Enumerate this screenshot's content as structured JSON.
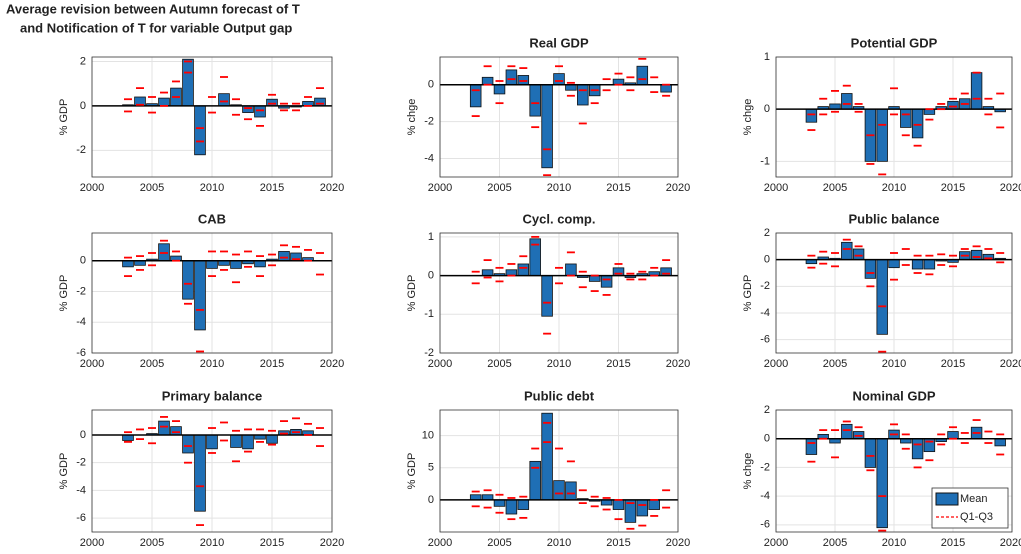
{
  "chart_data": [
    {
      "type": "bar",
      "title": [
        "Average revision between Autumn forecast of T",
        "and Notification of T for variable Output gap"
      ],
      "ylabel": "% GDP",
      "x": [
        2003,
        2004,
        2005,
        2006,
        2007,
        2008,
        2009,
        2010,
        2011,
        2012,
        2013,
        2014,
        2015,
        2016,
        2017,
        2018,
        2019
      ],
      "xlim": [
        2000,
        2020
      ],
      "xticks": [
        2000,
        2005,
        2010,
        2015,
        2020
      ],
      "ylim": [
        -3.2,
        2.2
      ],
      "yticks": [
        -2,
        0,
        2
      ],
      "grid": true,
      "series": [
        {
          "color": "#1f6fb5",
          "values": [
            0.05,
            0.4,
            0.1,
            0.35,
            0.8,
            2.1,
            -2.2,
            0.0,
            0.55,
            0.05,
            -0.3,
            -0.5,
            0.3,
            -0.1,
            -0.05,
            0.2,
            0.35
          ]
        },
        {
          "color": "#ff0000",
          "q1": [
            -0.25,
            0.05,
            -0.3,
            0.0,
            0.4,
            1.5,
            -1.6,
            -0.3,
            0.2,
            -0.4,
            -0.6,
            -0.9,
            0.1,
            -0.2,
            -0.2,
            0.0,
            0.1
          ],
          "q3": [
            0.3,
            0.8,
            0.4,
            0.6,
            1.1,
            2.0,
            -1.0,
            0.4,
            1.3,
            0.3,
            -0.1,
            -0.2,
            0.5,
            0.1,
            0.1,
            0.4,
            0.8
          ]
        }
      ]
    },
    {
      "type": "bar",
      "title": "Real GDP",
      "ylabel": "% chge",
      "x": [
        2003,
        2004,
        2005,
        2006,
        2007,
        2008,
        2009,
        2010,
        2011,
        2012,
        2013,
        2014,
        2015,
        2016,
        2017,
        2018,
        2019
      ],
      "xlim": [
        2000,
        2020
      ],
      "xticks": [
        2000,
        2005,
        2010,
        2015,
        2020
      ],
      "ylim": [
        -5,
        1.5
      ],
      "yticks": [
        -4,
        -2,
        0
      ],
      "grid": true,
      "series": [
        {
          "color": "#1f6fb5",
          "values": [
            -1.2,
            0.4,
            -0.5,
            0.8,
            0.5,
            -1.7,
            -4.5,
            0.6,
            -0.3,
            -1.1,
            -0.6,
            0.0,
            0.3,
            0.1,
            1.0,
            0.0,
            -0.4
          ]
        },
        {
          "color": "#ff0000",
          "q1": [
            -1.7,
            0.0,
            -1.0,
            0.3,
            0.2,
            -2.3,
            -4.9,
            0.2,
            -0.6,
            -2.1,
            -1.0,
            -0.3,
            0.0,
            -0.3,
            0.3,
            -0.4,
            -0.6
          ],
          "q3": [
            -0.3,
            1.0,
            0.2,
            1.0,
            0.9,
            -1.0,
            -3.5,
            1.0,
            0.1,
            -0.3,
            -0.3,
            0.3,
            0.6,
            0.4,
            1.4,
            0.4,
            0.0
          ]
        }
      ]
    },
    {
      "type": "bar",
      "title": "Potential GDP",
      "ylabel": "% chge",
      "x": [
        2003,
        2004,
        2005,
        2006,
        2007,
        2008,
        2009,
        2010,
        2011,
        2012,
        2013,
        2014,
        2015,
        2016,
        2017,
        2018,
        2019
      ],
      "xlim": [
        2000,
        2020
      ],
      "xticks": [
        2000,
        2005,
        2010,
        2015,
        2020
      ],
      "ylim": [
        -1.3,
        1
      ],
      "yticks": [
        -1,
        0,
        1
      ],
      "grid": true,
      "series": [
        {
          "color": "#1f6fb5",
          "values": [
            -0.25,
            0.05,
            0.1,
            0.3,
            0.05,
            -1.0,
            -1.0,
            0.05,
            -0.35,
            -0.55,
            -0.1,
            0.05,
            0.15,
            0.2,
            0.7,
            0.05,
            -0.05
          ]
        },
        {
          "color": "#ff0000",
          "q1": [
            -0.4,
            -0.1,
            -0.05,
            0.1,
            -0.05,
            -1.05,
            -1.25,
            -0.1,
            -0.5,
            -0.7,
            -0.2,
            0.0,
            0.05,
            0.1,
            0.2,
            -0.1,
            -0.35
          ],
          "q3": [
            -0.1,
            0.2,
            0.35,
            0.45,
            0.1,
            -0.5,
            -0.3,
            0.4,
            -0.1,
            -0.3,
            0.0,
            0.1,
            0.2,
            0.3,
            0.7,
            0.2,
            0.3
          ]
        }
      ]
    },
    {
      "type": "bar",
      "title": "CAB",
      "ylabel": "% GDP",
      "x": [
        2003,
        2004,
        2005,
        2006,
        2007,
        2008,
        2009,
        2010,
        2011,
        2012,
        2013,
        2014,
        2015,
        2016,
        2017,
        2018,
        2019
      ],
      "xlim": [
        2000,
        2020
      ],
      "xticks": [
        2000,
        2005,
        2010,
        2015,
        2020
      ],
      "ylim": [
        -6,
        1.8
      ],
      "yticks": [
        -6,
        -4,
        -2,
        0
      ],
      "grid": true,
      "series": [
        {
          "color": "#1f6fb5",
          "values": [
            -0.4,
            -0.3,
            0.1,
            1.1,
            0.3,
            -2.5,
            -4.5,
            -0.5,
            -0.3,
            -0.5,
            -0.2,
            -0.4,
            0.1,
            0.6,
            0.5,
            0.2,
            0.0
          ]
        },
        {
          "color": "#ff0000",
          "q1": [
            -1.0,
            -0.6,
            -0.3,
            0.5,
            0.0,
            -2.8,
            -5.9,
            -1.0,
            -0.6,
            -1.4,
            -0.4,
            -1.0,
            -0.3,
            0.2,
            0.1,
            0.0,
            -0.9
          ],
          "q3": [
            0.2,
            0.3,
            0.5,
            1.3,
            0.6,
            -1.5,
            -3.2,
            0.6,
            0.6,
            0.4,
            0.6,
            0.3,
            0.4,
            1.0,
            0.9,
            0.7,
            0.5
          ]
        }
      ]
    },
    {
      "type": "bar",
      "title": "Cycl. comp.",
      "ylabel": "% GDP",
      "x": [
        2003,
        2004,
        2005,
        2006,
        2007,
        2008,
        2009,
        2010,
        2011,
        2012,
        2013,
        2014,
        2015,
        2016,
        2017,
        2018,
        2019
      ],
      "xlim": [
        2000,
        2020
      ],
      "xticks": [
        2000,
        2005,
        2010,
        2015,
        2020
      ],
      "ylim": [
        -2,
        1.1
      ],
      "yticks": [
        -2,
        -1,
        0,
        1
      ],
      "grid": true,
      "series": [
        {
          "color": "#1f6fb5",
          "values": [
            0.0,
            0.15,
            0.05,
            0.15,
            0.3,
            0.95,
            -1.05,
            0.0,
            0.3,
            -0.05,
            -0.15,
            -0.3,
            0.2,
            -0.05,
            0.05,
            0.1,
            0.2
          ]
        },
        {
          "color": "#ff0000",
          "q1": [
            -0.2,
            -0.05,
            -0.15,
            0.0,
            0.2,
            0.8,
            -1.5,
            -0.2,
            0.0,
            -0.3,
            -0.4,
            -0.5,
            0.05,
            -0.1,
            -0.1,
            0.0,
            0.05
          ],
          "q3": [
            0.1,
            0.4,
            0.2,
            0.3,
            0.5,
            1.0,
            -0.7,
            0.2,
            0.6,
            0.1,
            0.0,
            -0.1,
            0.3,
            0.05,
            0.1,
            0.2,
            0.4
          ]
        }
      ]
    },
    {
      "type": "bar",
      "title": "Public balance",
      "ylabel": "% GDP",
      "x": [
        2003,
        2004,
        2005,
        2006,
        2007,
        2008,
        2009,
        2010,
        2011,
        2012,
        2013,
        2014,
        2015,
        2016,
        2017,
        2018,
        2019
      ],
      "xlim": [
        2000,
        2020
      ],
      "xticks": [
        2000,
        2005,
        2010,
        2015,
        2020
      ],
      "ylim": [
        -7,
        2
      ],
      "yticks": [
        -6,
        -4,
        -2,
        0,
        2
      ],
      "grid": true,
      "series": [
        {
          "color": "#1f6fb5",
          "values": [
            -0.3,
            0.2,
            0.1,
            1.3,
            0.8,
            -1.4,
            -5.6,
            -0.6,
            0.0,
            -0.7,
            -0.7,
            -0.1,
            -0.2,
            0.6,
            0.7,
            0.4,
            0.1
          ]
        },
        {
          "color": "#ff0000",
          "q1": [
            -0.6,
            -0.3,
            -0.5,
            0.8,
            0.3,
            -2.0,
            -6.9,
            -1.5,
            -0.4,
            -1.0,
            -1.1,
            -0.4,
            -0.5,
            0.3,
            0.2,
            0.1,
            -0.2
          ],
          "q3": [
            0.3,
            0.6,
            0.5,
            1.5,
            1.0,
            -1.0,
            -3.5,
            0.5,
            0.8,
            0.3,
            0.3,
            0.4,
            0.3,
            0.8,
            1.0,
            0.8,
            0.5
          ]
        }
      ]
    },
    {
      "type": "bar",
      "title": "Primary balance",
      "ylabel": "% GDP",
      "x": [
        2003,
        2004,
        2005,
        2006,
        2007,
        2008,
        2009,
        2010,
        2011,
        2012,
        2013,
        2014,
        2015,
        2016,
        2017,
        2018,
        2019
      ],
      "xlim": [
        2000,
        2020
      ],
      "xticks": [
        2000,
        2005,
        2010,
        2015,
        2020
      ],
      "ylim": [
        -7,
        1.8
      ],
      "yticks": [
        -6,
        -4,
        -2,
        0
      ],
      "grid": true,
      "series": [
        {
          "color": "#1f6fb5",
          "values": [
            -0.4,
            0.0,
            0.1,
            1.0,
            0.6,
            -1.3,
            -5.5,
            -1.0,
            0.0,
            -0.9,
            -1.0,
            -0.3,
            -0.6,
            0.3,
            0.4,
            0.3,
            0.0
          ]
        },
        {
          "color": "#ff0000",
          "q1": [
            -0.5,
            -0.3,
            -0.6,
            0.6,
            0.2,
            -2.0,
            -6.5,
            -1.3,
            -0.4,
            -1.9,
            -1.2,
            -0.5,
            -0.7,
            0.1,
            0.2,
            0.0,
            -0.8
          ],
          "q3": [
            0.2,
            0.4,
            0.5,
            1.3,
            1.0,
            -0.8,
            -3.7,
            0.5,
            0.9,
            0.3,
            0.4,
            0.4,
            0.3,
            1.0,
            1.2,
            0.8,
            0.5
          ]
        }
      ]
    },
    {
      "type": "bar",
      "title": "Public debt",
      "ylabel": "% GDP",
      "x": [
        2003,
        2004,
        2005,
        2006,
        2007,
        2008,
        2009,
        2010,
        2011,
        2012,
        2013,
        2014,
        2015,
        2016,
        2017,
        2018,
        2019
      ],
      "xlim": [
        2000,
        2020
      ],
      "xticks": [
        2000,
        2005,
        2010,
        2015,
        2020
      ],
      "ylim": [
        -5,
        14
      ],
      "yticks": [
        0,
        5,
        10
      ],
      "grid": true,
      "series": [
        {
          "color": "#1f6fb5",
          "values": [
            0.8,
            0.8,
            -1.0,
            -2.2,
            -1.5,
            6.0,
            13.5,
            3.0,
            2.8,
            0.2,
            -0.2,
            -0.8,
            -1.5,
            -3.5,
            -2.5,
            -1.5,
            0.0
          ]
        },
        {
          "color": "#ff0000",
          "q1": [
            -1.0,
            -1.2,
            -2.0,
            -3.0,
            -2.8,
            5.0,
            9.0,
            1.0,
            1.0,
            -0.5,
            -1.0,
            -1.5,
            -3.0,
            -4.5,
            -4.0,
            -2.5,
            -1.2
          ],
          "q3": [
            1.3,
            1.5,
            0.8,
            0.3,
            0.5,
            8.0,
            12.0,
            8.0,
            6.0,
            1.5,
            0.5,
            0.3,
            0.0,
            -0.5,
            -0.8,
            0.0,
            1.5
          ]
        }
      ]
    },
    {
      "type": "bar",
      "title": "Nominal GDP",
      "ylabel": "% chge",
      "legend": "lower right",
      "x": [
        2003,
        2004,
        2005,
        2006,
        2007,
        2008,
        2009,
        2010,
        2011,
        2012,
        2013,
        2014,
        2015,
        2016,
        2017,
        2018,
        2019
      ],
      "xlim": [
        2000,
        2020
      ],
      "xticks": [
        2000,
        2005,
        2010,
        2015,
        2020
      ],
      "ylim": [
        -6.5,
        2
      ],
      "yticks": [
        -6,
        -4,
        -2,
        0,
        2
      ],
      "grid": true,
      "series": [
        {
          "name": "Mean",
          "color": "#1f6fb5",
          "values": [
            -1.1,
            0.3,
            -0.3,
            1.0,
            0.5,
            -2.0,
            -6.2,
            0.6,
            -0.3,
            -1.4,
            -0.9,
            -0.2,
            0.5,
            0.0,
            0.8,
            0.0,
            -0.5
          ]
        },
        {
          "name": "Q1-Q3",
          "color": "#ff0000",
          "q1": [
            -1.6,
            0.0,
            -1.3,
            0.6,
            0.2,
            -2.2,
            -6.4,
            0.3,
            -0.7,
            -2.0,
            -1.5,
            -0.4,
            0.0,
            -0.3,
            0.4,
            -0.3,
            -1.1
          ],
          "q3": [
            -0.3,
            0.6,
            0.6,
            1.2,
            0.8,
            -1.2,
            -4.0,
            1.0,
            0.3,
            -0.4,
            -0.2,
            0.3,
            0.8,
            0.4,
            1.3,
            0.5,
            0.3
          ]
        }
      ]
    }
  ]
}
